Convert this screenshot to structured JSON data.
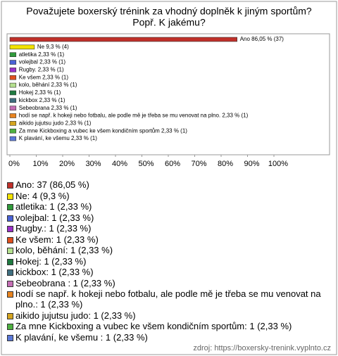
{
  "chart_data": {
    "type": "bar",
    "orientation": "horizontal",
    "title": [
      "Považujete boxerský trénink za vhodný doplněk k jiným sportům?",
      "Popř. K jakému?"
    ],
    "categories": [
      "Ano",
      "Ne",
      "atletika",
      "volejbal",
      "Rugby.",
      "Ke všem",
      "kolo, běhání",
      "Hokej",
      "kickbox",
      "Sebeobrana ",
      "hodí se např. k hokeji nebo fotbalu, ale podle mě je třeba se mu venovat na plno.",
      "aikido jujutsu judo",
      "Za mne Kickboxing a vubec ke všem kondičním sportům",
      "K plavání, ke všemu "
    ],
    "values": [
      86.05,
      9.3,
      2.33,
      2.33,
      2.33,
      2.33,
      2.33,
      2.33,
      2.33,
      2.33,
      2.33,
      2.33,
      2.33,
      2.33
    ],
    "value_labels": [
      "Ano 86,05 % (37)",
      "Ne 9,3 % (4)",
      "atletika 2,33 % (1)",
      "volejbal 2,33 % (1)",
      "Rugby. 2,33 % (1)",
      "Ke všem 2,33 % (1)",
      "kolo, běhání 2,33 % (1)",
      "Hokej 2,33 % (1)",
      "kickbox 2,33 % (1)",
      "Sebeobrana  2,33 % (1)",
      "hodí se např. k hokeji nebo fotbalu, ale podle mě je třeba se mu venovat na plno. 2,33 % (1)",
      "aikido jujutsu judo 2,33 % (1)",
      "Za mne Kickboxing a vubec ke všem kondičním sportům 2,33 % (1)",
      "K plavání, ke všemu  2,33 % (1)"
    ],
    "colors": [
      "#c0302a",
      "#f2e200",
      "#2f9a3a",
      "#4a62d6",
      "#9a30c8",
      "#e0501e",
      "#b4e08e",
      "#1f7a40",
      "#3f6f80",
      "#c46eb4",
      "#e88420",
      "#d4a420",
      "#4eb040",
      "#5a78d8"
    ],
    "legend": [
      "Ano: 37 (86,05 %)",
      "Ne: 4 (9,3 %)",
      "atletika: 1 (2,33 %)",
      "volejbal: 1 (2,33 %)",
      "Rugby.: 1 (2,33 %)",
      "Ke všem: 1 (2,33 %)",
      "kolo, běhání: 1 (2,33 %)",
      "Hokej: 1 (2,33 %)",
      "kickbox: 1 (2,33 %)",
      "Sebeobrana : 1 (2,33 %)",
      "hodí se např. k hokeji nebo fotbalu, ale podle mě je třeba se mu venovat na plno.: 1 (2,33 %)",
      "aikido jujutsu judo: 1 (2,33 %)",
      "Za mne Kickboxing a vubec ke všem kondičním sportům: 1 (2,33 %)",
      "K plavání, ke všemu : 1 (2,33 %)"
    ],
    "xlim": [
      0,
      100
    ],
    "xticks": [
      {
        "value": 0,
        "label": "0%"
      },
      {
        "value": 10,
        "label": "10%"
      },
      {
        "value": 20,
        "label": "20%"
      },
      {
        "value": 30,
        "label": "30%"
      },
      {
        "value": 40,
        "label": "40%"
      },
      {
        "value": 50,
        "label": "50%"
      },
      {
        "value": 60,
        "label": "60%"
      },
      {
        "value": 70,
        "label": "70%"
      },
      {
        "value": 80,
        "label": "80%"
      },
      {
        "value": 90,
        "label": "90%"
      },
      {
        "value": 100,
        "label": "100%"
      }
    ],
    "source": "zdroj: https://boxersky-trenink.vyplnto.cz"
  }
}
